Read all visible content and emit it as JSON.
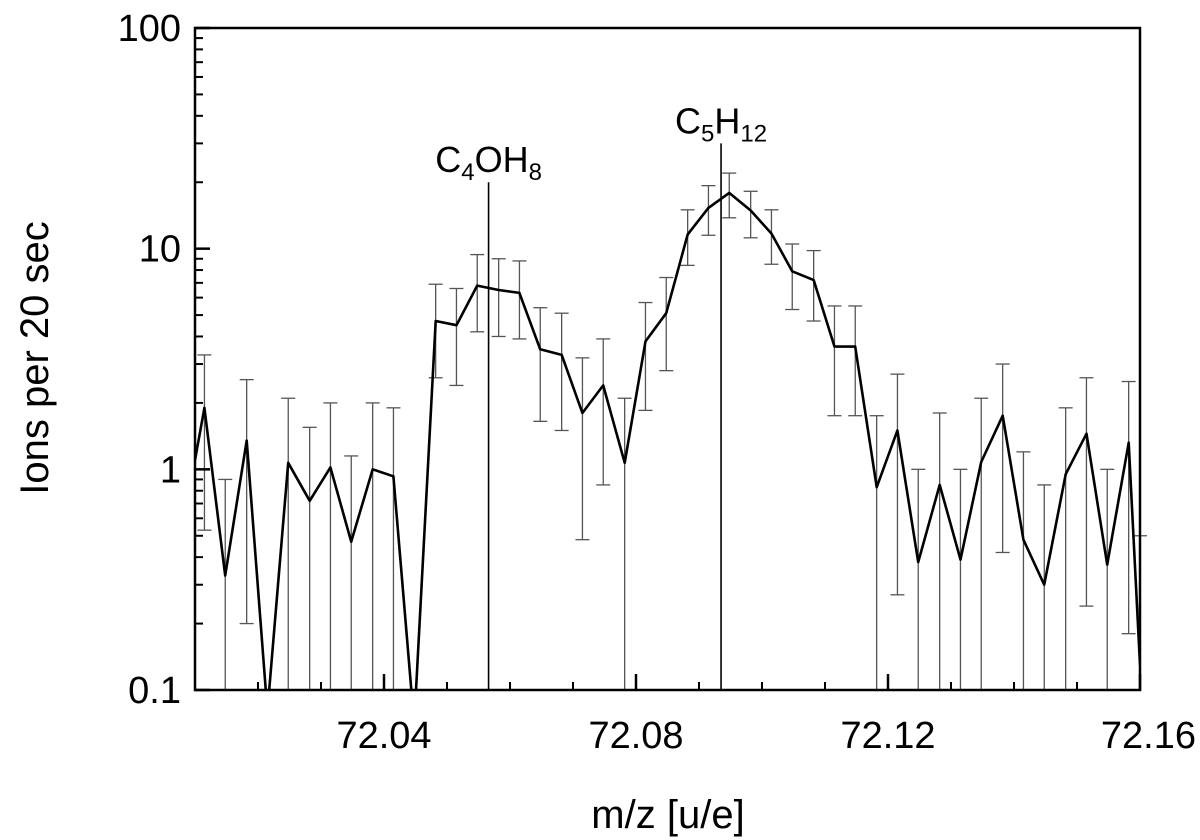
{
  "chart_data": {
    "type": "line",
    "xlabel": "m/z [u/e]",
    "ylabel": "Ions per 20 sec",
    "xlim": [
      72.01,
      72.16
    ],
    "ylim": [
      0.1,
      100
    ],
    "yscale": "log",
    "xticks": [
      72.04,
      72.08,
      72.12,
      72.16
    ],
    "xtick_labels": [
      "72.04",
      "72.08",
      "72.12",
      "72.16"
    ],
    "yticks": [
      0.1,
      1,
      10,
      100
    ],
    "ytick_labels": [
      "0.1",
      "1",
      "10",
      "100"
    ],
    "grid": false,
    "series": [
      {
        "x": [
          72.01,
          72.0115,
          72.0148,
          72.0182,
          72.0215,
          72.0248,
          72.0282,
          72.0315,
          72.0348,
          72.0382,
          72.0415,
          72.0448,
          72.0482,
          72.0515,
          72.0548,
          72.0582,
          72.0615,
          72.0648,
          72.0682,
          72.0715,
          72.0748,
          72.0782,
          72.0815,
          72.0848,
          72.0882,
          72.0915,
          72.0948,
          72.0982,
          72.1015,
          72.1048,
          72.1082,
          72.1115,
          72.1148,
          72.1182,
          72.1215,
          72.1248,
          72.1282,
          72.1315,
          72.1348,
          72.1382,
          72.1415,
          72.1448,
          72.1482,
          72.1515,
          72.1548,
          72.1582,
          72.16
        ],
        "y": [
          1.1,
          1.9,
          0.33,
          1.35,
          0.08,
          1.07,
          0.72,
          1.02,
          0.47,
          1.0,
          0.93,
          0.07,
          4.7,
          4.5,
          6.8,
          6.5,
          6.3,
          3.5,
          3.3,
          1.8,
          2.4,
          1.07,
          3.8,
          5.1,
          11.6,
          15.3,
          17.9,
          14.9,
          11.7,
          7.9,
          7.2,
          3.6,
          3.6,
          0.83,
          1.5,
          0.38,
          0.85,
          0.39,
          1.08,
          1.75,
          0.48,
          0.3,
          0.95,
          1.45,
          0.37,
          1.32,
          0.13
        ],
        "err_low": [
          null,
          0.53,
          0.1,
          0.2,
          null,
          0.1,
          0.1,
          0.1,
          0.1,
          0.1,
          0.1,
          null,
          2.6,
          2.4,
          4.2,
          4.0,
          3.9,
          1.65,
          1.5,
          0.48,
          0.85,
          0.1,
          1.85,
          2.8,
          8.4,
          11.5,
          13.8,
          11.2,
          8.5,
          5.3,
          4.7,
          1.75,
          1.75,
          0.1,
          0.27,
          0.1,
          0.1,
          0.1,
          0.1,
          0.42,
          0.1,
          0.1,
          0.1,
          0.24,
          0.1,
          0.18,
          null
        ],
        "err_high": [
          null,
          3.3,
          0.9,
          2.55,
          null,
          2.1,
          1.55,
          2.0,
          1.15,
          2.0,
          1.9,
          null,
          6.9,
          6.6,
          9.4,
          9.0,
          8.8,
          5.4,
          5.1,
          3.2,
          3.9,
          2.1,
          5.7,
          7.4,
          15.0,
          19.3,
          22.0,
          18.2,
          15.0,
          10.5,
          9.8,
          5.5,
          5.5,
          1.75,
          2.7,
          1.0,
          1.8,
          1.0,
          2.1,
          3.0,
          1.2,
          0.85,
          1.9,
          2.6,
          1.0,
          2.5,
          0.5
        ]
      }
    ],
    "annotations": [
      {
        "x": 72.0566,
        "y_top": 20,
        "base": "C",
        "sub1": "4",
        "mid": "OH",
        "sub2": "8"
      },
      {
        "x": 72.0935,
        "y_top": 30,
        "base": "C",
        "sub1": "5",
        "mid": "H",
        "sub2": "12"
      }
    ]
  }
}
